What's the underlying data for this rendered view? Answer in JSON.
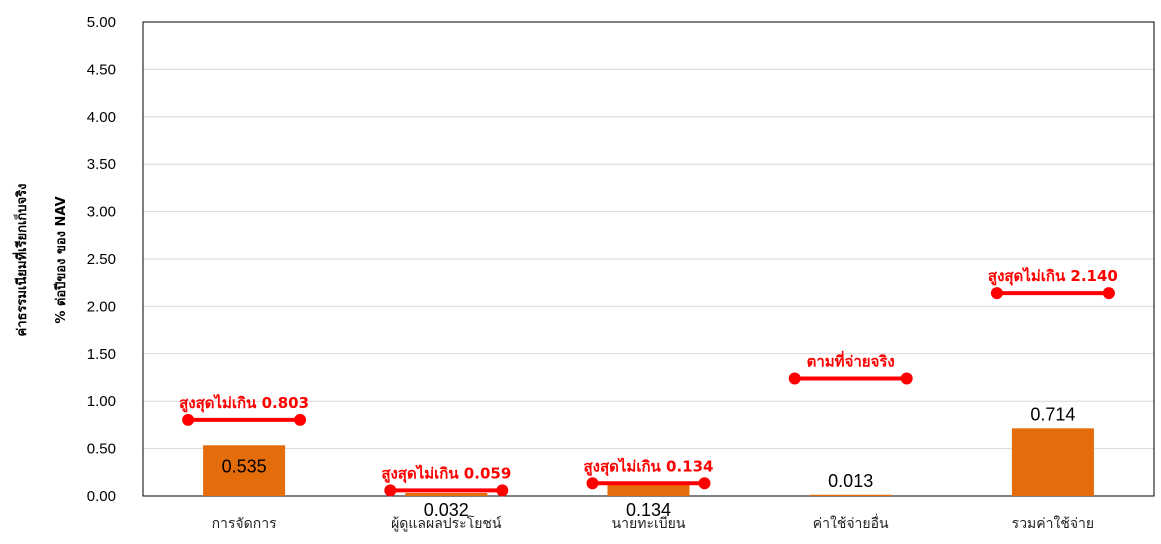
{
  "chart_data": {
    "type": "bar",
    "title": "",
    "xlabel": "",
    "ylabel_line1": "ค่าธรรมเนียมที่เรียกเก็บจริง",
    "ylabel_line2": "% ต่อปีของ ของ NAV",
    "ylim": [
      0,
      5
    ],
    "y_ticks": [
      "0.00",
      "0.50",
      "1.00",
      "1.50",
      "2.00",
      "2.50",
      "3.00",
      "3.50",
      "4.00",
      "4.50",
      "5.00"
    ],
    "categories": [
      "การจัดการ",
      "ผู้ดูแลผลประโยชน์",
      "นายทะเบียน",
      "ค่าใช้จ่ายอื่น",
      "รวมค่าใช้จ่าย"
    ],
    "values": [
      0.535,
      0.032,
      0.134,
      0.013,
      0.714
    ],
    "value_labels": [
      "0.535",
      "0.032",
      "0.134",
      "0.013",
      "0.714"
    ],
    "max_values": [
      0.803,
      0.059,
      0.134,
      1.24,
      2.14
    ],
    "max_labels": [
      "สูงสุดไม่เกิน 0.803",
      "สูงสุดไม่เกิน 0.059",
      "สูงสุดไม่เกิน 0.134",
      "ตามที่จ่ายจริง",
      "สูงสุดไม่เกิน 2.140"
    ],
    "grid": true,
    "colors": {
      "bar": "#E46C0A",
      "max_marker": "#FF0000",
      "grid": "#D9D9D9"
    }
  }
}
